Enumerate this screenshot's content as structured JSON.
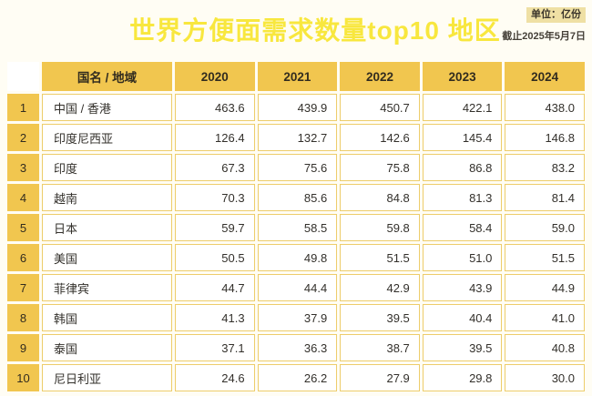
{
  "header": {
    "title": "世界方便面需求数量top10 地区",
    "unit_label": "单位：亿份",
    "as_of_label": "截止2025年5月7日"
  },
  "table": {
    "corner_label": "",
    "columns": [
      "国名 / 地域",
      "2020",
      "2021",
      "2022",
      "2023",
      "2024"
    ],
    "rows": [
      {
        "rank": "1",
        "region": "中国 / 香港",
        "values": [
          "463.6",
          "439.9",
          "450.7",
          "422.1",
          "438.0"
        ]
      },
      {
        "rank": "2",
        "region": "印度尼西亚",
        "values": [
          "126.4",
          "132.7",
          "142.6",
          "145.4",
          "146.8"
        ]
      },
      {
        "rank": "3",
        "region": "印度",
        "values": [
          "67.3",
          "75.6",
          "75.8",
          "86.8",
          "83.2"
        ]
      },
      {
        "rank": "4",
        "region": "越南",
        "values": [
          "70.3",
          "85.6",
          "84.8",
          "81.3",
          "81.4"
        ]
      },
      {
        "rank": "5",
        "region": "日本",
        "values": [
          "59.7",
          "58.5",
          "59.8",
          "58.4",
          "59.0"
        ]
      },
      {
        "rank": "6",
        "region": "美国",
        "values": [
          "50.5",
          "49.8",
          "51.5",
          "51.0",
          "51.5"
        ]
      },
      {
        "rank": "7",
        "region": "菲律宾",
        "values": [
          "44.7",
          "44.4",
          "42.9",
          "43.9",
          "44.9"
        ]
      },
      {
        "rank": "8",
        "region": "韩国",
        "values": [
          "41.3",
          "37.9",
          "39.5",
          "40.4",
          "41.0"
        ]
      },
      {
        "rank": "9",
        "region": "泰国",
        "values": [
          "37.1",
          "36.3",
          "38.7",
          "39.5",
          "40.8"
        ]
      },
      {
        "rank": "10",
        "region": "尼日利亚",
        "values": [
          "24.6",
          "26.2",
          "27.9",
          "29.8",
          "30.0"
        ]
      }
    ]
  },
  "colors": {
    "page_background": "#FFFDF4",
    "title_yellow": "#F8E73E",
    "header_gold": "#F1C64F",
    "cell_border_gold": "#EDCD6B",
    "badge_background": "#EFE0A4",
    "text_dark": "#33302B"
  },
  "chart_data": {
    "type": "table",
    "title": "世界方便面需求数量top10 地区",
    "unit": "亿份",
    "as_of": "截止2025年5月7日",
    "categories": [
      "2020",
      "2021",
      "2022",
      "2023",
      "2024"
    ],
    "series": [
      {
        "rank": 1,
        "name": "中国 / 香港",
        "values": [
          463.6,
          439.9,
          450.7,
          422.1,
          438.0
        ]
      },
      {
        "rank": 2,
        "name": "印度尼西亚",
        "values": [
          126.4,
          132.7,
          142.6,
          145.4,
          146.8
        ]
      },
      {
        "rank": 3,
        "name": "印度",
        "values": [
          67.3,
          75.6,
          75.8,
          86.8,
          83.2
        ]
      },
      {
        "rank": 4,
        "name": "越南",
        "values": [
          70.3,
          85.6,
          84.8,
          81.3,
          81.4
        ]
      },
      {
        "rank": 5,
        "name": "日本",
        "values": [
          59.7,
          58.5,
          59.8,
          58.4,
          59.0
        ]
      },
      {
        "rank": 6,
        "name": "美国",
        "values": [
          50.5,
          49.8,
          51.5,
          51.0,
          51.5
        ]
      },
      {
        "rank": 7,
        "name": "菲律宾",
        "values": [
          44.7,
          44.4,
          42.9,
          43.9,
          44.9
        ]
      },
      {
        "rank": 8,
        "name": "韩国",
        "values": [
          41.3,
          37.9,
          39.5,
          40.4,
          41.0
        ]
      },
      {
        "rank": 9,
        "name": "泰国",
        "values": [
          37.1,
          36.3,
          38.7,
          39.5,
          40.8
        ]
      },
      {
        "rank": 10,
        "name": "尼日利亚",
        "values": [
          24.6,
          26.2,
          27.9,
          29.8,
          30.0
        ]
      }
    ]
  }
}
